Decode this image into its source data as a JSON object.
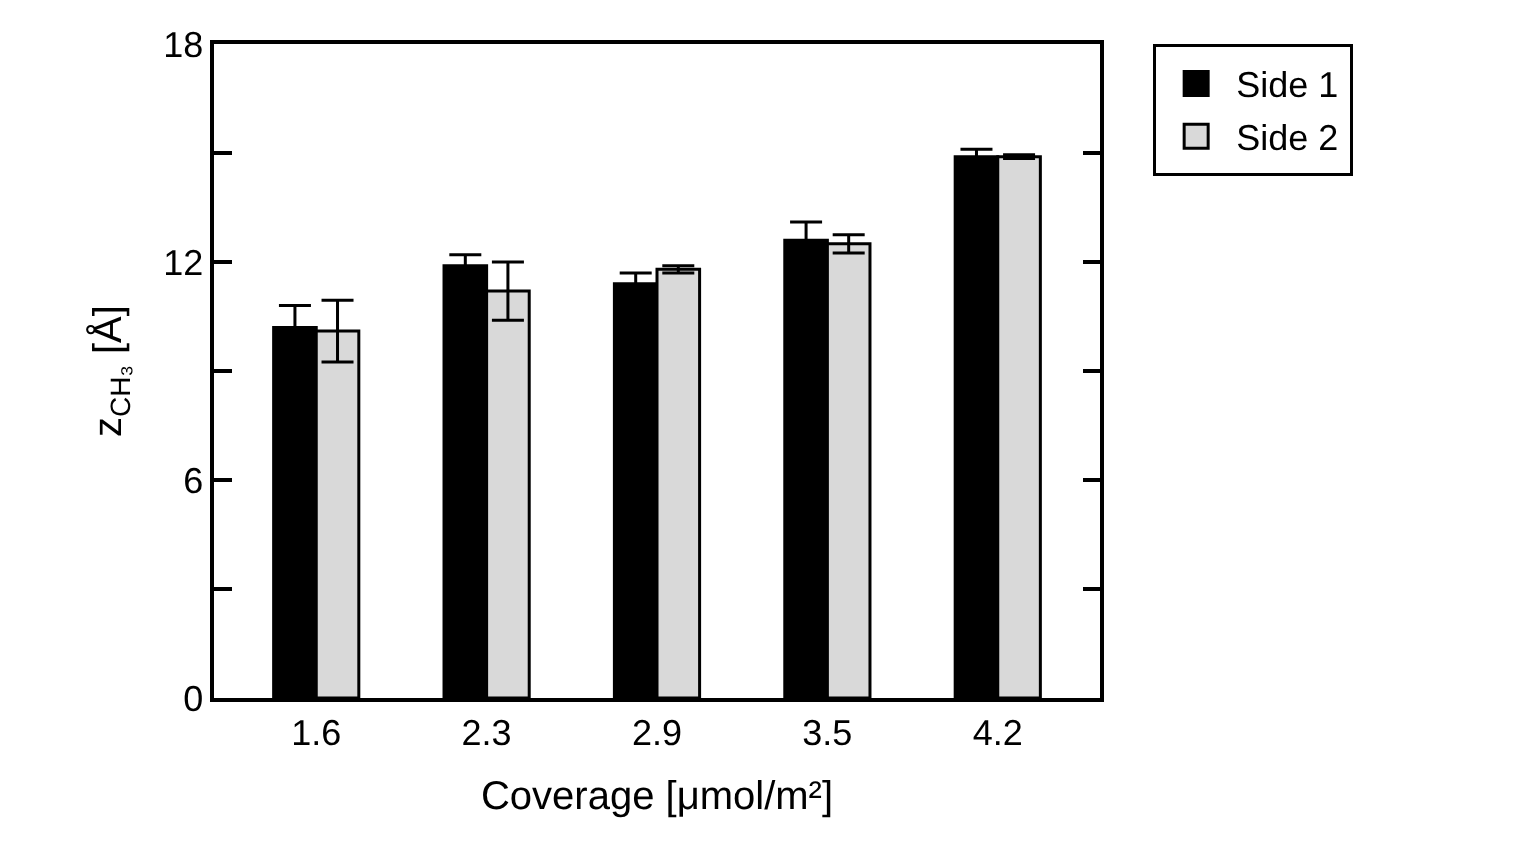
{
  "chart_data": {
    "type": "bar",
    "xlabel": "Coverage [μmol/m²]",
    "ylabel": "z$_{CH₃}$ [Å]",
    "categories": [
      "1.6",
      "2.3",
      "2.9",
      "3.5",
      "4.2"
    ],
    "series": [
      {
        "name": "Side 1",
        "color": "#000000",
        "values": [
          10.2,
          11.9,
          11.4,
          12.6,
          14.9
        ],
        "errors": [
          0.6,
          0.3,
          0.3,
          0.5,
          0.2
        ]
      },
      {
        "name": "Side 2",
        "color": "#d9d9d9",
        "values": [
          10.1,
          11.2,
          11.8,
          12.5,
          14.9
        ],
        "errors": [
          0.85,
          0.8,
          0.1,
          0.25,
          0.05
        ]
      }
    ],
    "ylim": [
      0,
      18
    ],
    "yticks": [
      0,
      {
        "value": 3,
        "label": null
      },
      6,
      {
        "value": 9,
        "label": null
      },
      12,
      {
        "value": 15,
        "label": null
      },
      18
    ],
    "legend": "top right"
  }
}
